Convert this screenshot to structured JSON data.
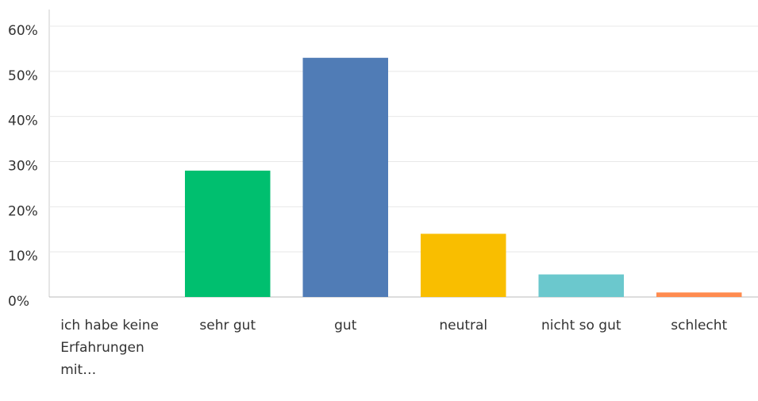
{
  "chart_data": {
    "type": "bar",
    "categories": [
      "ich habe keine Erfahrungen mit…",
      "sehr gut",
      "gut",
      "neutral",
      "nicht so gut",
      "schlecht"
    ],
    "values": [
      0,
      28,
      53,
      14,
      5,
      1
    ],
    "colors": [
      "#00bf6f",
      "#00bf6f",
      "#507cb6",
      "#f9be00",
      "#6bc8cd",
      "#ff8b4f"
    ],
    "ylim": [
      0,
      60
    ],
    "yticks": [
      {
        "value": 0,
        "label": "0%"
      },
      {
        "value": 10,
        "label": "10%"
      },
      {
        "value": 20,
        "label": "20%"
      },
      {
        "value": 30,
        "label": "30%"
      },
      {
        "value": 40,
        "label": "40%"
      },
      {
        "value": 50,
        "label": "50%"
      },
      {
        "value": 60,
        "label": "60%"
      }
    ],
    "grid": true
  }
}
